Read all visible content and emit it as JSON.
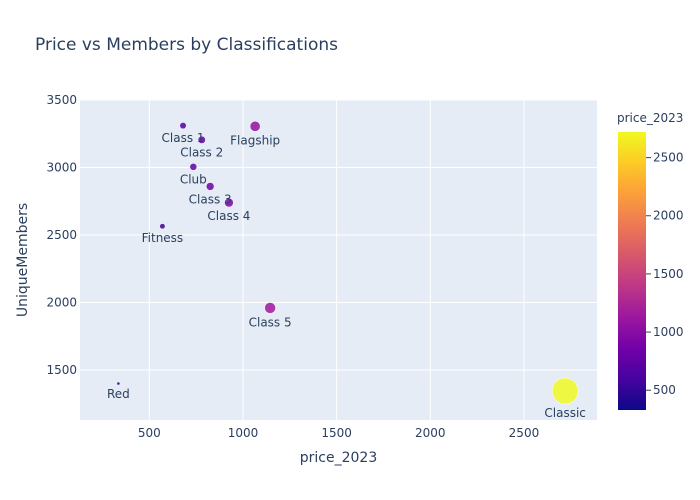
{
  "chart_data": {
    "type": "scatter",
    "title": "Price vs Members by Classifications",
    "xlabel": "price_2023",
    "ylabel": "UniqueMembers",
    "xlim": [
      130,
      2890
    ],
    "ylim": [
      1130,
      3500
    ],
    "xticks": [
      500,
      1000,
      1500,
      2000,
      2500
    ],
    "yticks": [
      1500,
      2000,
      2500,
      3000,
      3500
    ],
    "grid": true,
    "colorbar": {
      "title": "price_2023",
      "range": [
        330,
        2720
      ],
      "ticks": [
        500,
        1000,
        1500,
        2000,
        2500
      ]
    },
    "points": [
      {
        "label": "Class 1",
        "x": 680,
        "y": 3310,
        "size": 680
      },
      {
        "label": "Class 2",
        "x": 780,
        "y": 3205,
        "size": 780
      },
      {
        "label": "Flagship",
        "x": 1065,
        "y": 3305,
        "size": 1065
      },
      {
        "label": "Club",
        "x": 735,
        "y": 3005,
        "size": 735
      },
      {
        "label": "Class 3",
        "x": 825,
        "y": 2860,
        "size": 825
      },
      {
        "label": "Class 4",
        "x": 925,
        "y": 2740,
        "size": 925
      },
      {
        "label": "Fitness",
        "x": 570,
        "y": 2565,
        "size": 570
      },
      {
        "label": "Class 5",
        "x": 1145,
        "y": 1960,
        "size": 1145
      },
      {
        "label": "Red",
        "x": 335,
        "y": 1400,
        "size": 335
      },
      {
        "label": "Classic",
        "x": 2720,
        "y": 1345,
        "size": 2720
      }
    ]
  }
}
